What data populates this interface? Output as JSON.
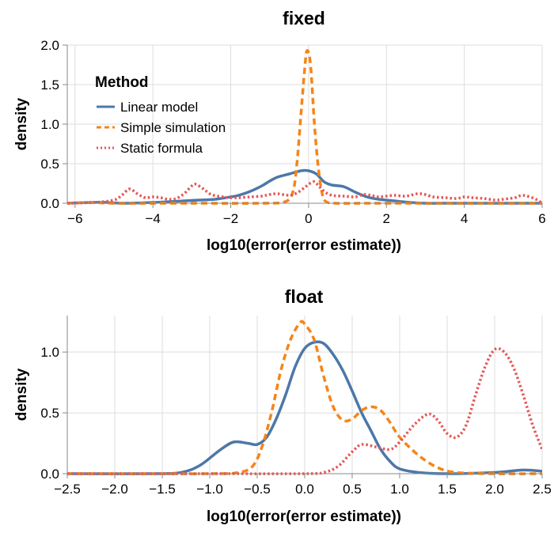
{
  "chart_data": [
    {
      "type": "line",
      "title": "fixed",
      "xlabel": "log10(error(error estimate))",
      "ylabel": "density",
      "xlim": [
        -6.2,
        6.0
      ],
      "ylim": [
        0,
        2.0
      ],
      "x_ticks": [
        -6,
        -4,
        -2,
        0,
        2,
        4,
        6
      ],
      "x_tick_labels": [
        "−6",
        "−4",
        "−2",
        "0",
        "2",
        "4",
        "6"
      ],
      "y_ticks": [
        0,
        0.5,
        1.0,
        1.5,
        2.0
      ],
      "y_tick_labels": [
        "0.0",
        "0.5",
        "1.0",
        "1.5",
        "2.0"
      ],
      "grid": true,
      "legend": {
        "title": "Method",
        "placement": "top-left",
        "entries": [
          "Linear model",
          "Simple simulation",
          "Static formula"
        ]
      },
      "series": [
        {
          "name": "Linear model",
          "color": "#4c78a8",
          "dash": "solid",
          "points": [
            [
              -6.2,
              0.0
            ],
            [
              -5.6,
              0.01
            ],
            [
              -5.2,
              0.01
            ],
            [
              -4.8,
              0.0
            ],
            [
              -4.0,
              0.01
            ],
            [
              -3.2,
              0.03
            ],
            [
              -2.8,
              0.04
            ],
            [
              -2.4,
              0.05
            ],
            [
              -2.0,
              0.08
            ],
            [
              -1.8,
              0.1
            ],
            [
              -1.5,
              0.15
            ],
            [
              -1.2,
              0.22
            ],
            [
              -1.0,
              0.28
            ],
            [
              -0.8,
              0.33
            ],
            [
              -0.5,
              0.37
            ],
            [
              -0.2,
              0.41
            ],
            [
              0.0,
              0.41
            ],
            [
              0.2,
              0.37
            ],
            [
              0.4,
              0.27
            ],
            [
              0.6,
              0.23
            ],
            [
              0.9,
              0.21
            ],
            [
              1.2,
              0.14
            ],
            [
              1.5,
              0.08
            ],
            [
              1.8,
              0.05
            ],
            [
              2.2,
              0.03
            ],
            [
              2.6,
              0.01
            ],
            [
              3.0,
              0.0
            ],
            [
              3.5,
              0.0
            ],
            [
              4.0,
              0.0
            ],
            [
              5.0,
              0.0
            ],
            [
              6.0,
              0.0
            ]
          ]
        },
        {
          "name": "Simple simulation",
          "color": "#f58518",
          "dash": "dashed",
          "points": [
            [
              -6.2,
              0.0
            ],
            [
              -5.5,
              0.01
            ],
            [
              -5.0,
              0.0
            ],
            [
              -3.0,
              0.0
            ],
            [
              -1.2,
              0.0
            ],
            [
              -0.6,
              0.02
            ],
            [
              -0.4,
              0.15
            ],
            [
              -0.3,
              0.5
            ],
            [
              -0.2,
              1.1
            ],
            [
              -0.1,
              1.7
            ],
            [
              -0.04,
              1.93
            ],
            [
              0.05,
              1.75
            ],
            [
              0.15,
              1.0
            ],
            [
              0.25,
              0.45
            ],
            [
              0.35,
              0.12
            ],
            [
              0.45,
              0.02
            ],
            [
              0.7,
              0.0
            ],
            [
              1.5,
              0.0
            ],
            [
              3.0,
              0.0
            ],
            [
              6.0,
              0.0
            ]
          ]
        },
        {
          "name": "Static formula",
          "color": "#e45756",
          "dash": "dotted",
          "points": [
            [
              -6.2,
              0.0
            ],
            [
              -5.5,
              0.01
            ],
            [
              -5.0,
              0.04
            ],
            [
              -4.8,
              0.1
            ],
            [
              -4.6,
              0.18
            ],
            [
              -4.4,
              0.12
            ],
            [
              -4.2,
              0.07
            ],
            [
              -4.0,
              0.08
            ],
            [
              -3.8,
              0.07
            ],
            [
              -3.6,
              0.05
            ],
            [
              -3.4,
              0.06
            ],
            [
              -3.2,
              0.12
            ],
            [
              -3.0,
              0.22
            ],
            [
              -2.9,
              0.24
            ],
            [
              -2.7,
              0.18
            ],
            [
              -2.5,
              0.11
            ],
            [
              -2.2,
              0.08
            ],
            [
              -2.0,
              0.07
            ],
            [
              -1.8,
              0.07
            ],
            [
              -1.5,
              0.08
            ],
            [
              -1.2,
              0.09
            ],
            [
              -1.0,
              0.11
            ],
            [
              -0.8,
              0.12
            ],
            [
              -0.5,
              0.1
            ],
            [
              -0.3,
              0.13
            ],
            [
              -0.1,
              0.2
            ],
            [
              0.1,
              0.27
            ],
            [
              0.2,
              0.25
            ],
            [
              0.4,
              0.15
            ],
            [
              0.6,
              0.1
            ],
            [
              0.9,
              0.09
            ],
            [
              1.2,
              0.08
            ],
            [
              1.4,
              0.11
            ],
            [
              1.6,
              0.1
            ],
            [
              1.8,
              0.08
            ],
            [
              2.0,
              0.09
            ],
            [
              2.2,
              0.1
            ],
            [
              2.5,
              0.09
            ],
            [
              2.8,
              0.12
            ],
            [
              3.0,
              0.11
            ],
            [
              3.2,
              0.08
            ],
            [
              3.5,
              0.07
            ],
            [
              3.8,
              0.06
            ],
            [
              4.0,
              0.08
            ],
            [
              4.2,
              0.07
            ],
            [
              4.5,
              0.06
            ],
            [
              4.8,
              0.04
            ],
            [
              5.0,
              0.05
            ],
            [
              5.3,
              0.07
            ],
            [
              5.5,
              0.1
            ],
            [
              5.8,
              0.06
            ],
            [
              6.0,
              0.0
            ]
          ]
        }
      ]
    },
    {
      "type": "line",
      "title": "float",
      "xlabel": "log10(error(error estimate))",
      "ylabel": "density",
      "xlim": [
        -2.5,
        2.5
      ],
      "ylim": [
        0,
        1.3
      ],
      "x_ticks": [
        -2.5,
        -2.0,
        -1.5,
        -1.0,
        -0.5,
        0.0,
        0.5,
        1.0,
        1.5,
        2.0,
        2.5
      ],
      "x_tick_labels": [
        "−2.5",
        "−2.0",
        "−1.5",
        "−1.0",
        "−0.5",
        "0.0",
        "0.5",
        "1.0",
        "1.5",
        "2.0",
        "2.5"
      ],
      "y_ticks": [
        0,
        0.5,
        1.0
      ],
      "y_tick_labels": [
        "0.0",
        "0.5",
        "1.0"
      ],
      "grid": true,
      "series": [
        {
          "name": "Linear model",
          "color": "#4c78a8",
          "dash": "solid",
          "points": [
            [
              -2.5,
              0.0
            ],
            [
              -1.6,
              0.0
            ],
            [
              -1.3,
              0.01
            ],
            [
              -1.1,
              0.07
            ],
            [
              -0.9,
              0.19
            ],
            [
              -0.75,
              0.26
            ],
            [
              -0.6,
              0.25
            ],
            [
              -0.5,
              0.24
            ],
            [
              -0.4,
              0.3
            ],
            [
              -0.3,
              0.45
            ],
            [
              -0.2,
              0.65
            ],
            [
              -0.1,
              0.88
            ],
            [
              0.0,
              1.03
            ],
            [
              0.1,
              1.08
            ],
            [
              0.2,
              1.07
            ],
            [
              0.3,
              0.98
            ],
            [
              0.4,
              0.85
            ],
            [
              0.5,
              0.68
            ],
            [
              0.6,
              0.5
            ],
            [
              0.7,
              0.35
            ],
            [
              0.8,
              0.2
            ],
            [
              0.9,
              0.1
            ],
            [
              1.0,
              0.04
            ],
            [
              1.2,
              0.01
            ],
            [
              1.5,
              0.0
            ],
            [
              2.0,
              0.01
            ],
            [
              2.3,
              0.03
            ],
            [
              2.5,
              0.02
            ]
          ]
        },
        {
          "name": "Simple simulation",
          "color": "#f58518",
          "dash": "dashed",
          "points": [
            [
              -2.5,
              0.0
            ],
            [
              -1.0,
              0.0
            ],
            [
              -0.7,
              0.01
            ],
            [
              -0.55,
              0.06
            ],
            [
              -0.45,
              0.22
            ],
            [
              -0.35,
              0.5
            ],
            [
              -0.25,
              0.85
            ],
            [
              -0.15,
              1.1
            ],
            [
              -0.05,
              1.24
            ],
            [
              0.0,
              1.23
            ],
            [
              0.1,
              1.1
            ],
            [
              0.2,
              0.8
            ],
            [
              0.3,
              0.55
            ],
            [
              0.4,
              0.44
            ],
            [
              0.5,
              0.45
            ],
            [
              0.6,
              0.52
            ],
            [
              0.7,
              0.55
            ],
            [
              0.8,
              0.52
            ],
            [
              0.9,
              0.42
            ],
            [
              1.0,
              0.3
            ],
            [
              1.2,
              0.15
            ],
            [
              1.4,
              0.05
            ],
            [
              1.6,
              0.01
            ],
            [
              2.0,
              0.0
            ],
            [
              2.5,
              0.0
            ]
          ]
        },
        {
          "name": "Static formula",
          "color": "#e45756",
          "dash": "dotted",
          "points": [
            [
              -2.5,
              0.0
            ],
            [
              -1.0,
              0.0
            ],
            [
              0.0,
              0.0
            ],
            [
              0.2,
              0.01
            ],
            [
              0.35,
              0.06
            ],
            [
              0.5,
              0.18
            ],
            [
              0.6,
              0.24
            ],
            [
              0.75,
              0.22
            ],
            [
              0.9,
              0.2
            ],
            [
              1.0,
              0.26
            ],
            [
              1.15,
              0.4
            ],
            [
              1.3,
              0.49
            ],
            [
              1.4,
              0.44
            ],
            [
              1.5,
              0.33
            ],
            [
              1.6,
              0.3
            ],
            [
              1.7,
              0.4
            ],
            [
              1.8,
              0.65
            ],
            [
              1.9,
              0.88
            ],
            [
              2.0,
              1.02
            ],
            [
              2.1,
              1.0
            ],
            [
              2.2,
              0.87
            ],
            [
              2.3,
              0.65
            ],
            [
              2.4,
              0.4
            ],
            [
              2.5,
              0.2
            ]
          ]
        }
      ]
    }
  ]
}
